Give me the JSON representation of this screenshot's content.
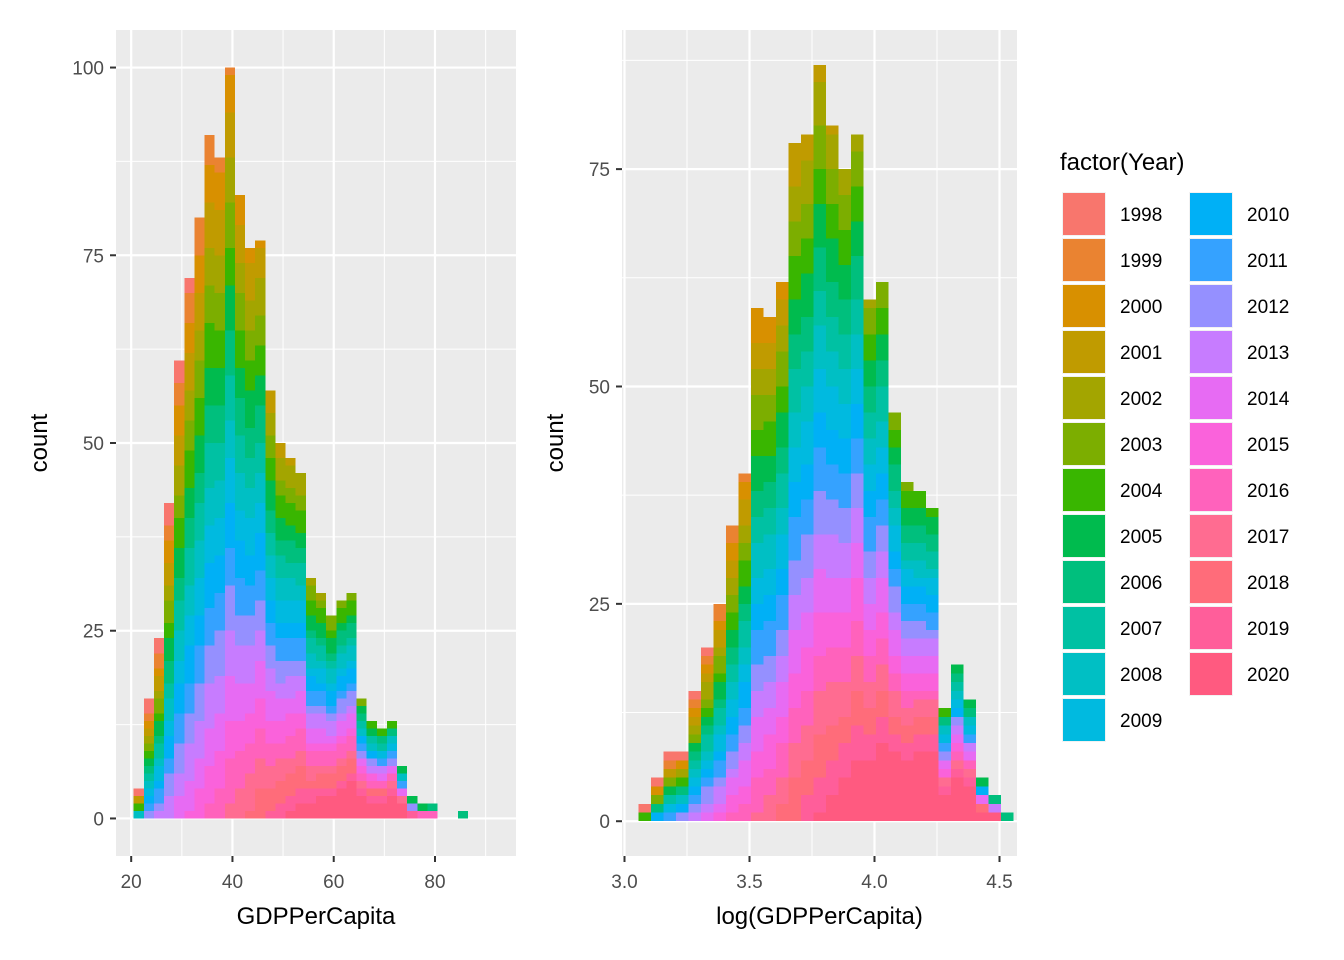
{
  "chart_data": [
    {
      "type": "histogram",
      "stacked_by": "factor(Year)",
      "xlabel": "GDPPerCapita",
      "ylabel": "count",
      "xlim": [
        17,
        96
      ],
      "ylim": [
        -5,
        105
      ],
      "xticks": [
        20,
        40,
        60,
        80
      ],
      "yticks": [
        0,
        25,
        50,
        75,
        100
      ],
      "grid": true,
      "bins": [
        {
          "x": 21.5,
          "count": 4
        },
        {
          "x": 23.5,
          "count": 16
        },
        {
          "x": 25.5,
          "count": 24
        },
        {
          "x": 27.5,
          "count": 42
        },
        {
          "x": 29.5,
          "count": 61
        },
        {
          "x": 31.5,
          "count": 72
        },
        {
          "x": 33.5,
          "count": 80
        },
        {
          "x": 35.5,
          "count": 91
        },
        {
          "x": 37.5,
          "count": 88
        },
        {
          "x": 39.5,
          "count": 100
        },
        {
          "x": 41.5,
          "count": 83
        },
        {
          "x": 43.5,
          "count": 76
        },
        {
          "x": 45.5,
          "count": 77
        },
        {
          "x": 47.5,
          "count": 57
        },
        {
          "x": 49.5,
          "count": 50
        },
        {
          "x": 51.5,
          "count": 48
        },
        {
          "x": 53.5,
          "count": 46
        },
        {
          "x": 55.5,
          "count": 32
        },
        {
          "x": 57.5,
          "count": 30
        },
        {
          "x": 59.5,
          "count": 27
        },
        {
          "x": 61.5,
          "count": 29
        },
        {
          "x": 63.5,
          "count": 30
        },
        {
          "x": 65.5,
          "count": 16
        },
        {
          "x": 67.5,
          "count": 13
        },
        {
          "x": 69.5,
          "count": 12
        },
        {
          "x": 71.5,
          "count": 13
        },
        {
          "x": 73.5,
          "count": 7
        },
        {
          "x": 75.5,
          "count": 3
        },
        {
          "x": 77.5,
          "count": 2
        },
        {
          "x": 79.5,
          "count": 2
        },
        {
          "x": 85.5,
          "count": 1
        }
      ]
    },
    {
      "type": "histogram",
      "stacked_by": "factor(Year)",
      "xlabel": "log(GDPPerCapita)",
      "ylabel": "count",
      "xlim": [
        2.99,
        4.57
      ],
      "ylim": [
        -4,
        91
      ],
      "xticks": [
        3.0,
        3.5,
        4.0,
        4.5
      ],
      "yticks": [
        0,
        25,
        50,
        75
      ],
      "grid": true,
      "bins": [
        {
          "x": 3.08,
          "count": 2
        },
        {
          "x": 3.13,
          "count": 5
        },
        {
          "x": 3.18,
          "count": 8
        },
        {
          "x": 3.23,
          "count": 8
        },
        {
          "x": 3.28,
          "count": 15
        },
        {
          "x": 3.33,
          "count": 20
        },
        {
          "x": 3.38,
          "count": 25
        },
        {
          "x": 3.43,
          "count": 34
        },
        {
          "x": 3.48,
          "count": 40
        },
        {
          "x": 3.53,
          "count": 59
        },
        {
          "x": 3.58,
          "count": 58
        },
        {
          "x": 3.63,
          "count": 62
        },
        {
          "x": 3.68,
          "count": 78
        },
        {
          "x": 3.73,
          "count": 79
        },
        {
          "x": 3.78,
          "count": 87
        },
        {
          "x": 3.83,
          "count": 80
        },
        {
          "x": 3.88,
          "count": 75
        },
        {
          "x": 3.93,
          "count": 79
        },
        {
          "x": 3.98,
          "count": 60
        },
        {
          "x": 4.03,
          "count": 62
        },
        {
          "x": 4.08,
          "count": 47
        },
        {
          "x": 4.13,
          "count": 39
        },
        {
          "x": 4.18,
          "count": 38
        },
        {
          "x": 4.23,
          "count": 36
        },
        {
          "x": 4.28,
          "count": 13
        },
        {
          "x": 4.33,
          "count": 18
        },
        {
          "x": 4.38,
          "count": 14
        },
        {
          "x": 4.43,
          "count": 5
        },
        {
          "x": 4.48,
          "count": 3
        },
        {
          "x": 4.53,
          "count": 1
        }
      ]
    }
  ],
  "legend": {
    "title": "factor(Year)",
    "placement": "right",
    "entries": [
      {
        "label": "1998",
        "color": "#F8766D"
      },
      {
        "label": "1999",
        "color": "#EA8331"
      },
      {
        "label": "2000",
        "color": "#D89000"
      },
      {
        "label": "2001",
        "color": "#C09B00"
      },
      {
        "label": "2002",
        "color": "#A3A500"
      },
      {
        "label": "2003",
        "color": "#7CAE00"
      },
      {
        "label": "2004",
        "color": "#39B600"
      },
      {
        "label": "2005",
        "color": "#00BB4E"
      },
      {
        "label": "2006",
        "color": "#00BF7D"
      },
      {
        "label": "2007",
        "color": "#00C1A3"
      },
      {
        "label": "2008",
        "color": "#00BFC4"
      },
      {
        "label": "2009",
        "color": "#00BAE0"
      },
      {
        "label": "2010",
        "color": "#00B0F6"
      },
      {
        "label": "2011",
        "color": "#35A2FF"
      },
      {
        "label": "2012",
        "color": "#9590FF"
      },
      {
        "label": "2013",
        "color": "#C77CFF"
      },
      {
        "label": "2014",
        "color": "#E76BF3"
      },
      {
        "label": "2015",
        "color": "#FA62DB"
      },
      {
        "label": "2016",
        "color": "#FF62BC"
      },
      {
        "label": "2017",
        "color": "#FF6C91"
      },
      {
        "label": "2018",
        "color": "#FF6C7A"
      },
      {
        "label": "2019",
        "color": "#FF5E9A"
      },
      {
        "label": "2020",
        "color": "#FF5A80"
      }
    ]
  },
  "colors": {
    "panel_background": "#EBEBEB",
    "grid_major": "#FFFFFF"
  }
}
